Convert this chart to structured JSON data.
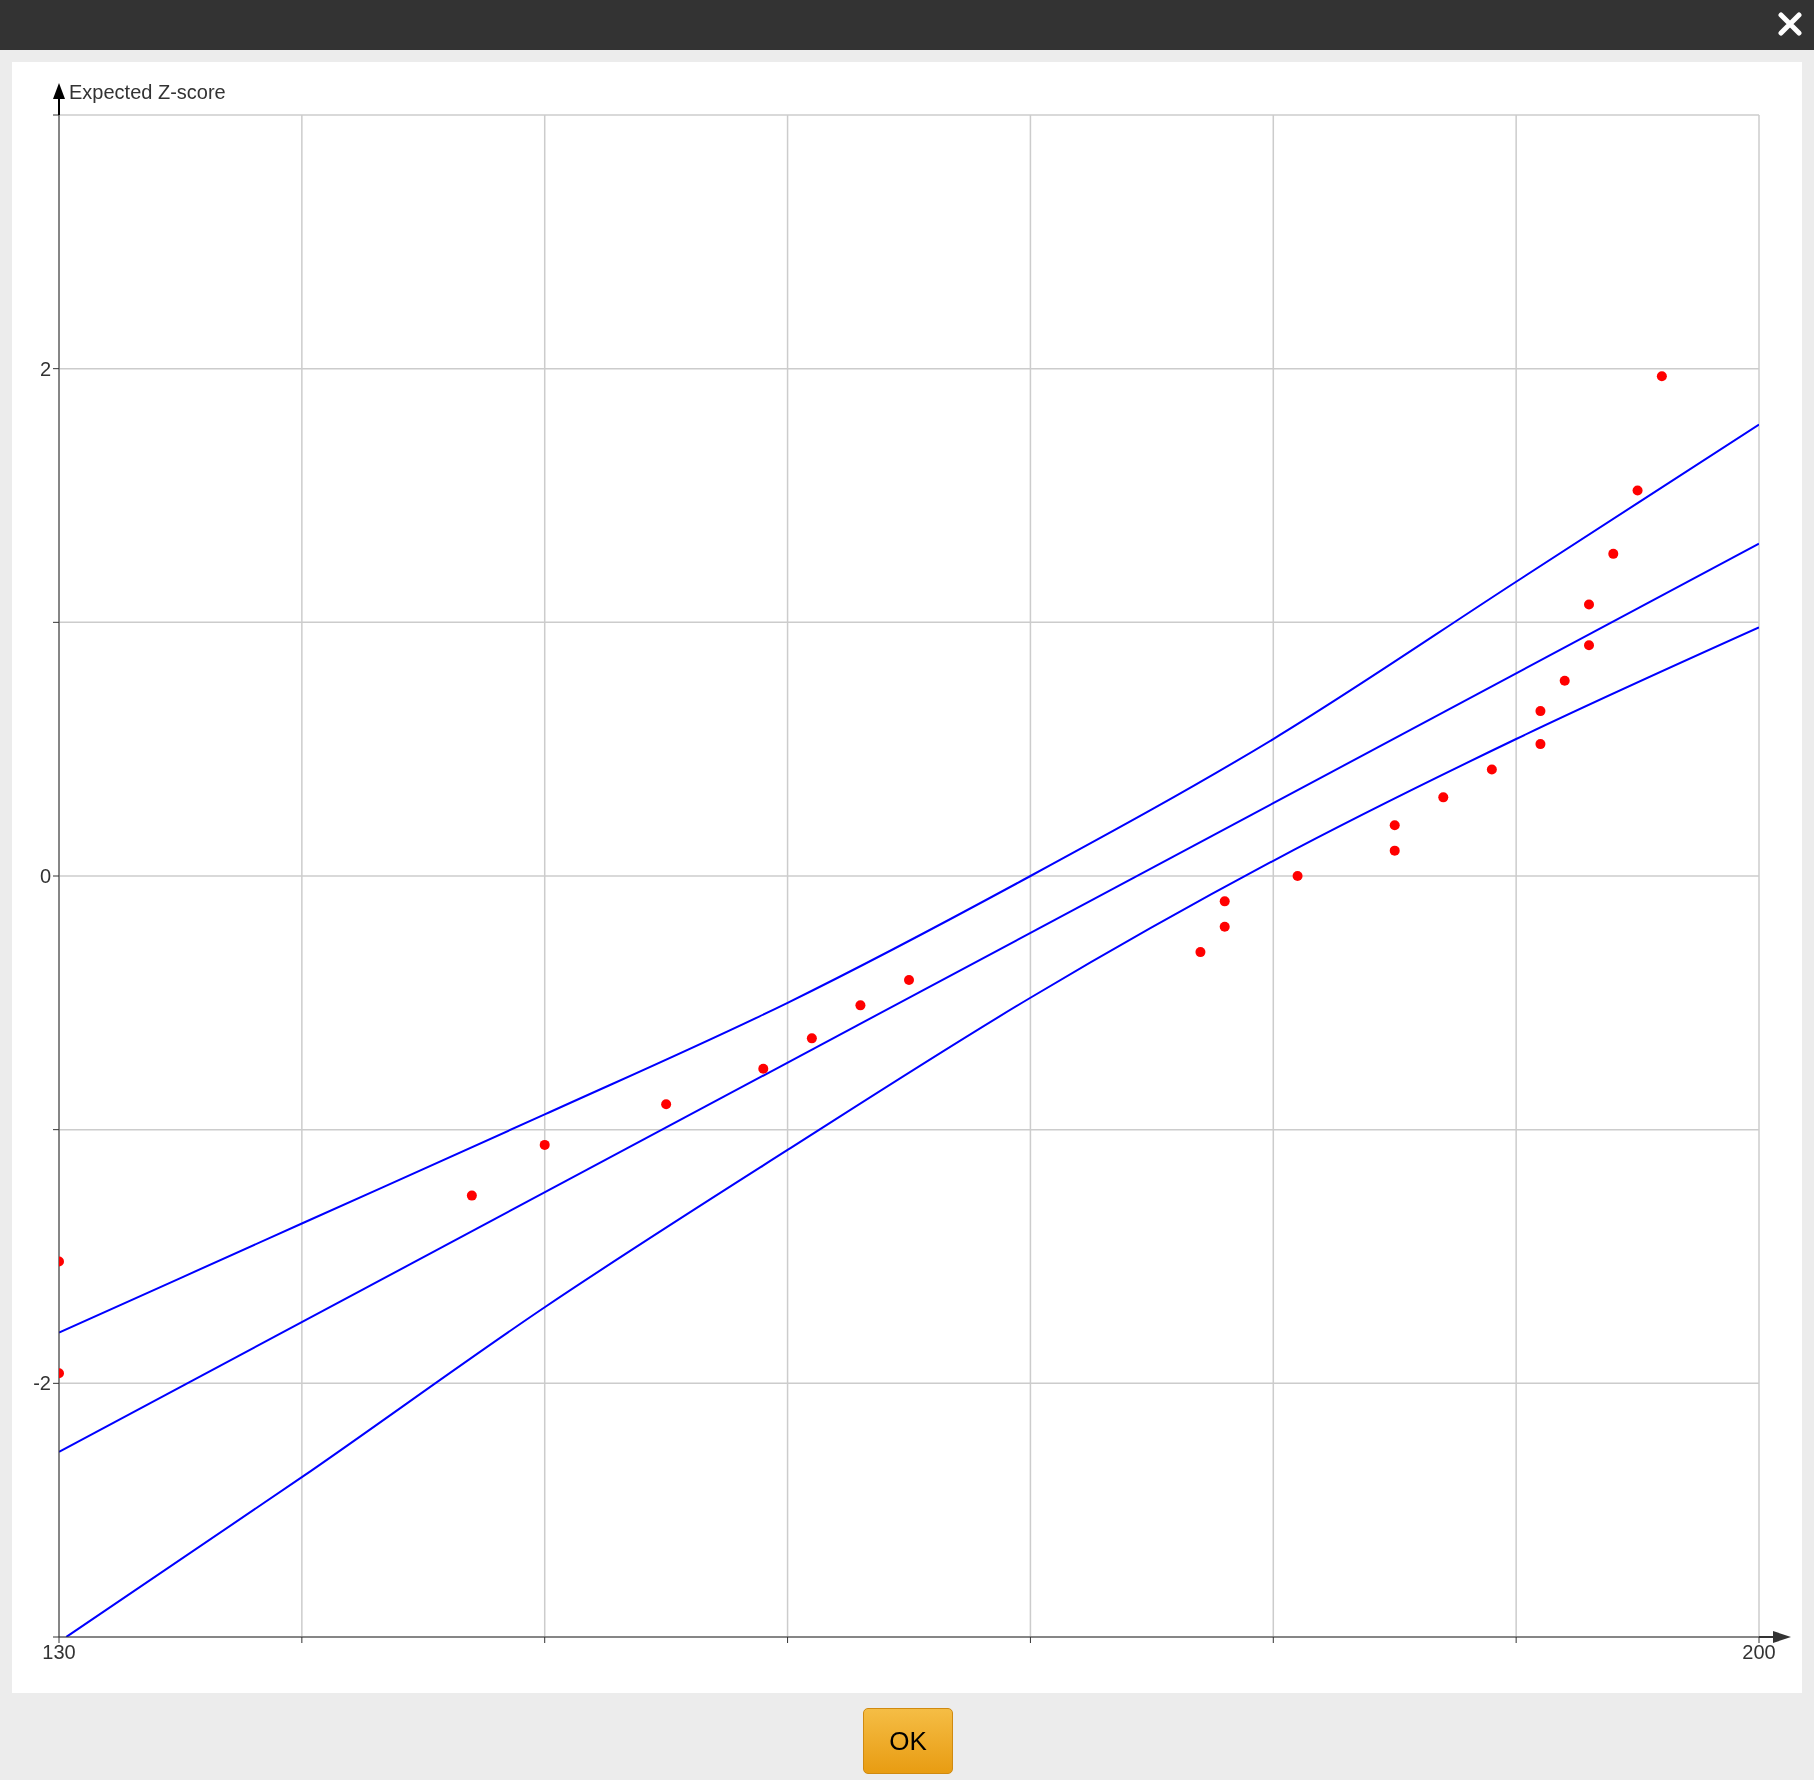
{
  "chart_data": {
    "type": "scatter",
    "ylabel": "Expected Z-score",
    "xlim": [
      130,
      200
    ],
    "xticks": [
      130,
      {
        "value": 140,
        "label": null
      },
      {
        "value": 150,
        "label": null
      },
      {
        "value": 160,
        "label": null
      },
      {
        "value": 170,
        "label": null
      },
      {
        "value": 180,
        "label": null
      },
      {
        "value": 190,
        "label": null
      },
      200
    ],
    "ylim": [
      -3,
      3
    ],
    "yticks": [
      {
        "value": -3,
        "label": null
      },
      -2,
      {
        "value": -1,
        "label": null
      },
      0,
      {
        "value": 1,
        "label": null
      },
      2,
      {
        "value": 3,
        "label": null
      }
    ],
    "grid": true,
    "annotations": [
      "OK"
    ],
    "series": [
      {
        "color": "#ff0000",
        "marker": "circle",
        "x": [
          130,
          130,
          147,
          150,
          155,
          159,
          161,
          163,
          165,
          177,
          178,
          178,
          181,
          185,
          185,
          187,
          189,
          191,
          191,
          192,
          193,
          193,
          194,
          195,
          196
        ],
        "values": [
          -1.52,
          -1.96,
          -1.26,
          -1.06,
          -0.9,
          -0.76,
          -0.64,
          -0.51,
          -0.41,
          -0.3,
          -0.2,
          -0.1,
          0,
          0.1,
          0.2,
          0.31,
          0.42,
          0.52,
          0.65,
          0.77,
          0.91,
          1.07,
          1.27,
          1.52,
          1.97
        ]
      },
      {
        "type": "line",
        "color": "#0000ff",
        "marker": "none",
        "x": [
          130,
          140,
          150,
          160,
          170,
          180,
          190,
          200
        ],
        "values": [
          -1.8,
          -1.37,
          -0.94,
          -0.5,
          0,
          0.54,
          1.16,
          1.78
        ]
      },
      {
        "type": "line",
        "color": "#0000ff",
        "marker": "none",
        "x": [
          130,
          200
        ],
        "values": [
          -2.27,
          1.31
        ]
      },
      {
        "type": "line",
        "color": "#0000ff",
        "marker": "none",
        "x": [
          130.3,
          140,
          150,
          160,
          170,
          180,
          190,
          200
        ],
        "values": [
          -3,
          -2.37,
          -1.7,
          -1.08,
          -0.48,
          0.06,
          0.54,
          0.98
        ]
      }
    ]
  }
}
